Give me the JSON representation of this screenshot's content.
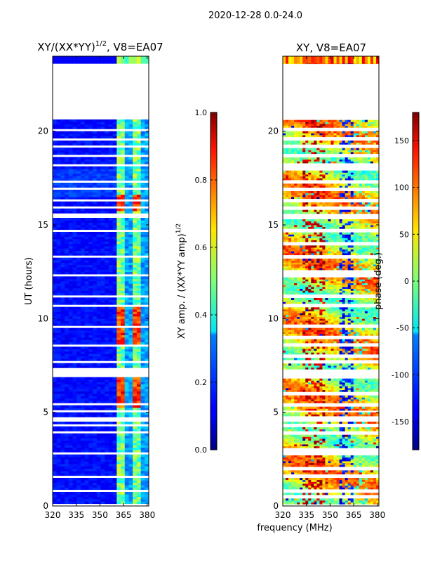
{
  "suptitle": "2020-12-28 0.0-24.0",
  "shared_xlabel": "frequency (MHz)",
  "chart_data": [
    {
      "type": "heatmap",
      "title_main": "XY/(XX*YY)",
      "title_exp": "1/2",
      "title_tail": ", V8=EA07",
      "ylabel": "UT (hours)",
      "xlim": [
        320,
        381
      ],
      "ylim": [
        0,
        24
      ],
      "xticks": [
        320,
        335,
        350,
        365,
        380
      ],
      "yticks": [
        0,
        5,
        10,
        15,
        20
      ],
      "flag_bands_hours": [
        [
          20.6,
          23.6
        ],
        [
          15.35,
          15.6
        ],
        [
          7.05,
          7.35
        ],
        [
          4.55,
          4.75
        ],
        [
          0.05,
          0.15
        ]
      ],
      "thin_gaps_hours": [
        0.5,
        0.8,
        1.6,
        2.0,
        2.8,
        3.0,
        3.9,
        4.3,
        5.05,
        5.4,
        6.0,
        6.9,
        7.7,
        8.0,
        8.6,
        9.0,
        9.6,
        10.7,
        11.2,
        12.3,
        12.5,
        13.3,
        14.0,
        14.7,
        15.9,
        16.3,
        16.9,
        17.3,
        18.0,
        18.2,
        18.7,
        19.2,
        19.6,
        20.1
      ],
      "colorbar": {
        "label_main": "XY amp. / (XX*YY amp)",
        "label_exp": "1/2",
        "vmin": 0.0,
        "vmax": 1.0,
        "ticks": [
          "0.0",
          "0.2",
          "0.4",
          "0.6",
          "0.8",
          "1.0"
        ],
        "colormap": "jet"
      }
    },
    {
      "type": "heatmap",
      "title": "XY, V8=EA07",
      "xlim": [
        320,
        381
      ],
      "ylim": [
        0,
        24
      ],
      "xticks": [
        320,
        335,
        350,
        365,
        380
      ],
      "yticks": [
        0,
        5,
        10,
        15,
        20
      ],
      "flag_bands_hours": [
        [
          20.6,
          23.6
        ],
        [
          15.35,
          15.6
        ],
        [
          7.05,
          7.35
        ],
        [
          4.55,
          4.75
        ],
        [
          0.05,
          0.15
        ]
      ],
      "colorbar": {
        "label": "phase (deg.)",
        "vmin": -180,
        "vmax": 180,
        "ticks": [
          150,
          100,
          50,
          0,
          -50,
          -100,
          -150
        ],
        "colormap": "jet"
      }
    }
  ]
}
